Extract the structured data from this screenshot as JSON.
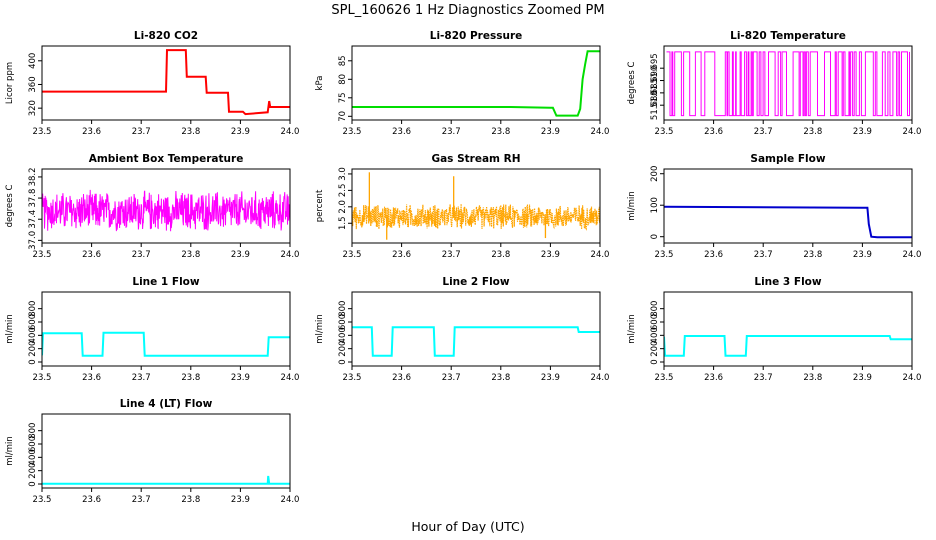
{
  "title": "SPL_160626  1 Hz Diagnostics Zoomed PM",
  "xlabel": "Hour of Day (UTC)",
  "chart_data": [
    {
      "type": "line",
      "title": "Li-820 CO2",
      "ylabel": "Licor ppm",
      "color": "#ff0000",
      "xlim": [
        23.5,
        24.0
      ],
      "ylim": [
        300,
        425
      ],
      "yticks": [
        320,
        360,
        400
      ],
      "yticklabels": [
        "320",
        "360",
        "400"
      ],
      "x": [
        23.5,
        23.75,
        23.752,
        23.79,
        23.792,
        23.83,
        23.832,
        23.875,
        23.877,
        23.905,
        23.91,
        23.955,
        23.958,
        23.96,
        23.963,
        24.0
      ],
      "y": [
        348,
        348,
        418,
        418,
        373,
        373,
        346,
        346,
        314,
        314,
        310,
        313,
        332,
        322,
        322,
        322
      ]
    },
    {
      "type": "line",
      "title": "Li-820 Pressure",
      "ylabel": "kPa",
      "color": "#00dd00",
      "xlim": [
        23.5,
        24.0
      ],
      "ylim": [
        69,
        89
      ],
      "yticks": [
        70,
        75,
        80,
        85
      ],
      "yticklabels": [
        "70",
        "75",
        "80",
        "85"
      ],
      "x": [
        23.5,
        23.82,
        23.9,
        23.905,
        23.912,
        23.955,
        23.96,
        23.965,
        23.97,
        23.975,
        24.0
      ],
      "y": [
        72.5,
        72.5,
        72.3,
        72.3,
        70.2,
        70.2,
        72.0,
        80.0,
        84.0,
        87.6,
        87.6
      ]
    },
    {
      "type": "line",
      "title": "Li-820 Temperature",
      "ylabel": "degrees C",
      "color": "#ff00ff",
      "xlim": [
        23.5,
        24.0
      ],
      "ylim": [
        51.674,
        51.704
      ],
      "yticks": [
        51.68,
        51.685,
        51.69,
        51.695
      ],
      "yticklabels": [
        "51.680",
        "51.685",
        "51.690",
        "51.695"
      ],
      "noise": {
        "style": "toggle",
        "low": 51.6758,
        "high": 51.7016,
        "xmin": 23.505,
        "xmax": 23.995,
        "n": 160
      }
    },
    {
      "type": "line",
      "title": "Ambient Box Temperature",
      "ylabel": "degrees C",
      "color": "#ff00ff",
      "xlim": [
        23.5,
        24.0
      ],
      "ylim": [
        36.95,
        38.35
      ],
      "yticks": [
        37.0,
        37.4,
        37.8,
        38.2
      ],
      "yticklabels": [
        "37.0",
        "37.4",
        "37.8",
        "38.2"
      ],
      "noise": {
        "style": "band",
        "center": 37.55,
        "spread": 0.42,
        "xmin": 23.5,
        "xmax": 24.0,
        "n": 700
      }
    },
    {
      "type": "line",
      "title": "Gas Stream RH",
      "ylabel": "percent",
      "color": "#ffa500",
      "xlim": [
        23.5,
        24.0
      ],
      "ylim": [
        0.9,
        3.15
      ],
      "yticks": [
        1.5,
        2.0,
        2.5,
        3.0
      ],
      "yticklabels": [
        "1.5",
        "2.0",
        "2.5",
        "3.0"
      ],
      "noise": {
        "style": "band",
        "center": 1.7,
        "spread": 0.42,
        "xmin": 23.5,
        "xmax": 24.0,
        "n": 700,
        "dots": true
      },
      "spikes": [
        [
          23.535,
          3.05
        ],
        [
          23.705,
          2.93
        ],
        [
          23.57,
          1.0
        ],
        [
          23.89,
          1.05
        ]
      ]
    },
    {
      "type": "line",
      "title": "Sample Flow",
      "ylabel": "ml/min",
      "color": "#0000cc",
      "xlim": [
        23.5,
        24.0
      ],
      "ylim": [
        -20,
        215
      ],
      "yticks": [
        0,
        100,
        200
      ],
      "yticklabels": [
        "0",
        "100",
        "200"
      ],
      "x": [
        23.5,
        23.9,
        23.91,
        23.913,
        23.918,
        23.93,
        24.0
      ],
      "y": [
        95,
        92,
        92,
        40,
        0,
        -2,
        -2
      ]
    },
    {
      "type": "line",
      "title": "Line 1 Flow",
      "ylabel": "ml/min",
      "color": "#00ffff",
      "xlim": [
        23.5,
        24.0
      ],
      "ylim": [
        -60,
        1050
      ],
      "yticks": [
        0,
        200,
        400,
        600,
        800
      ],
      "yticklabels": [
        "0",
        "200",
        "400",
        "600",
        "800"
      ],
      "x": [
        23.5,
        23.502,
        23.58,
        23.582,
        23.622,
        23.624,
        23.705,
        23.707,
        23.955,
        23.957,
        24.0
      ],
      "y": [
        100,
        430,
        430,
        95,
        95,
        440,
        440,
        95,
        95,
        370,
        370
      ]
    },
    {
      "type": "line",
      "title": "Line 2 Flow",
      "ylabel": "ml/min",
      "color": "#00ffff",
      "xlim": [
        23.5,
        24.0
      ],
      "ylim": [
        -60,
        1050
      ],
      "yticks": [
        0,
        200,
        400,
        600,
        800
      ],
      "yticklabels": [
        "0",
        "200",
        "400",
        "600",
        "800"
      ],
      "x": [
        23.5,
        23.54,
        23.542,
        23.58,
        23.582,
        23.665,
        23.667,
        23.705,
        23.707,
        23.955,
        23.957,
        24.0
      ],
      "y": [
        520,
        520,
        95,
        95,
        520,
        520,
        95,
        95,
        520,
        520,
        450,
        450
      ]
    },
    {
      "type": "line",
      "title": "Line 3 Flow",
      "ylabel": "ml/min",
      "color": "#00ffff",
      "xlim": [
        23.5,
        24.0
      ],
      "ylim": [
        -60,
        1050
      ],
      "yticks": [
        0,
        200,
        400,
        600,
        800
      ],
      "yticklabels": [
        "0",
        "200",
        "400",
        "600",
        "800"
      ],
      "x": [
        23.5,
        23.502,
        23.54,
        23.542,
        23.622,
        23.624,
        23.665,
        23.667,
        23.955,
        23.957,
        24.0
      ],
      "y": [
        380,
        95,
        95,
        390,
        390,
        95,
        95,
        390,
        390,
        340,
        340
      ]
    },
    {
      "type": "line",
      "title": "Line 4 (LT) Flow",
      "ylabel": "ml/min",
      "color": "#00ffff",
      "xlim": [
        23.5,
        24.0
      ],
      "ylim": [
        -60,
        1050
      ],
      "yticks": [
        0,
        200,
        400,
        600,
        800
      ],
      "yticklabels": [
        "0",
        "200",
        "400",
        "600",
        "800"
      ],
      "x": [
        23.5,
        23.955,
        23.956,
        23.958,
        23.96,
        24.0
      ],
      "y": [
        5,
        5,
        120,
        5,
        5,
        5
      ]
    }
  ],
  "xticks": [
    23.5,
    23.6,
    23.7,
    23.8,
    23.9,
    24.0
  ],
  "xticklabels": [
    "23.5",
    "23.6",
    "23.7",
    "23.8",
    "23.9",
    "24.0"
  ]
}
